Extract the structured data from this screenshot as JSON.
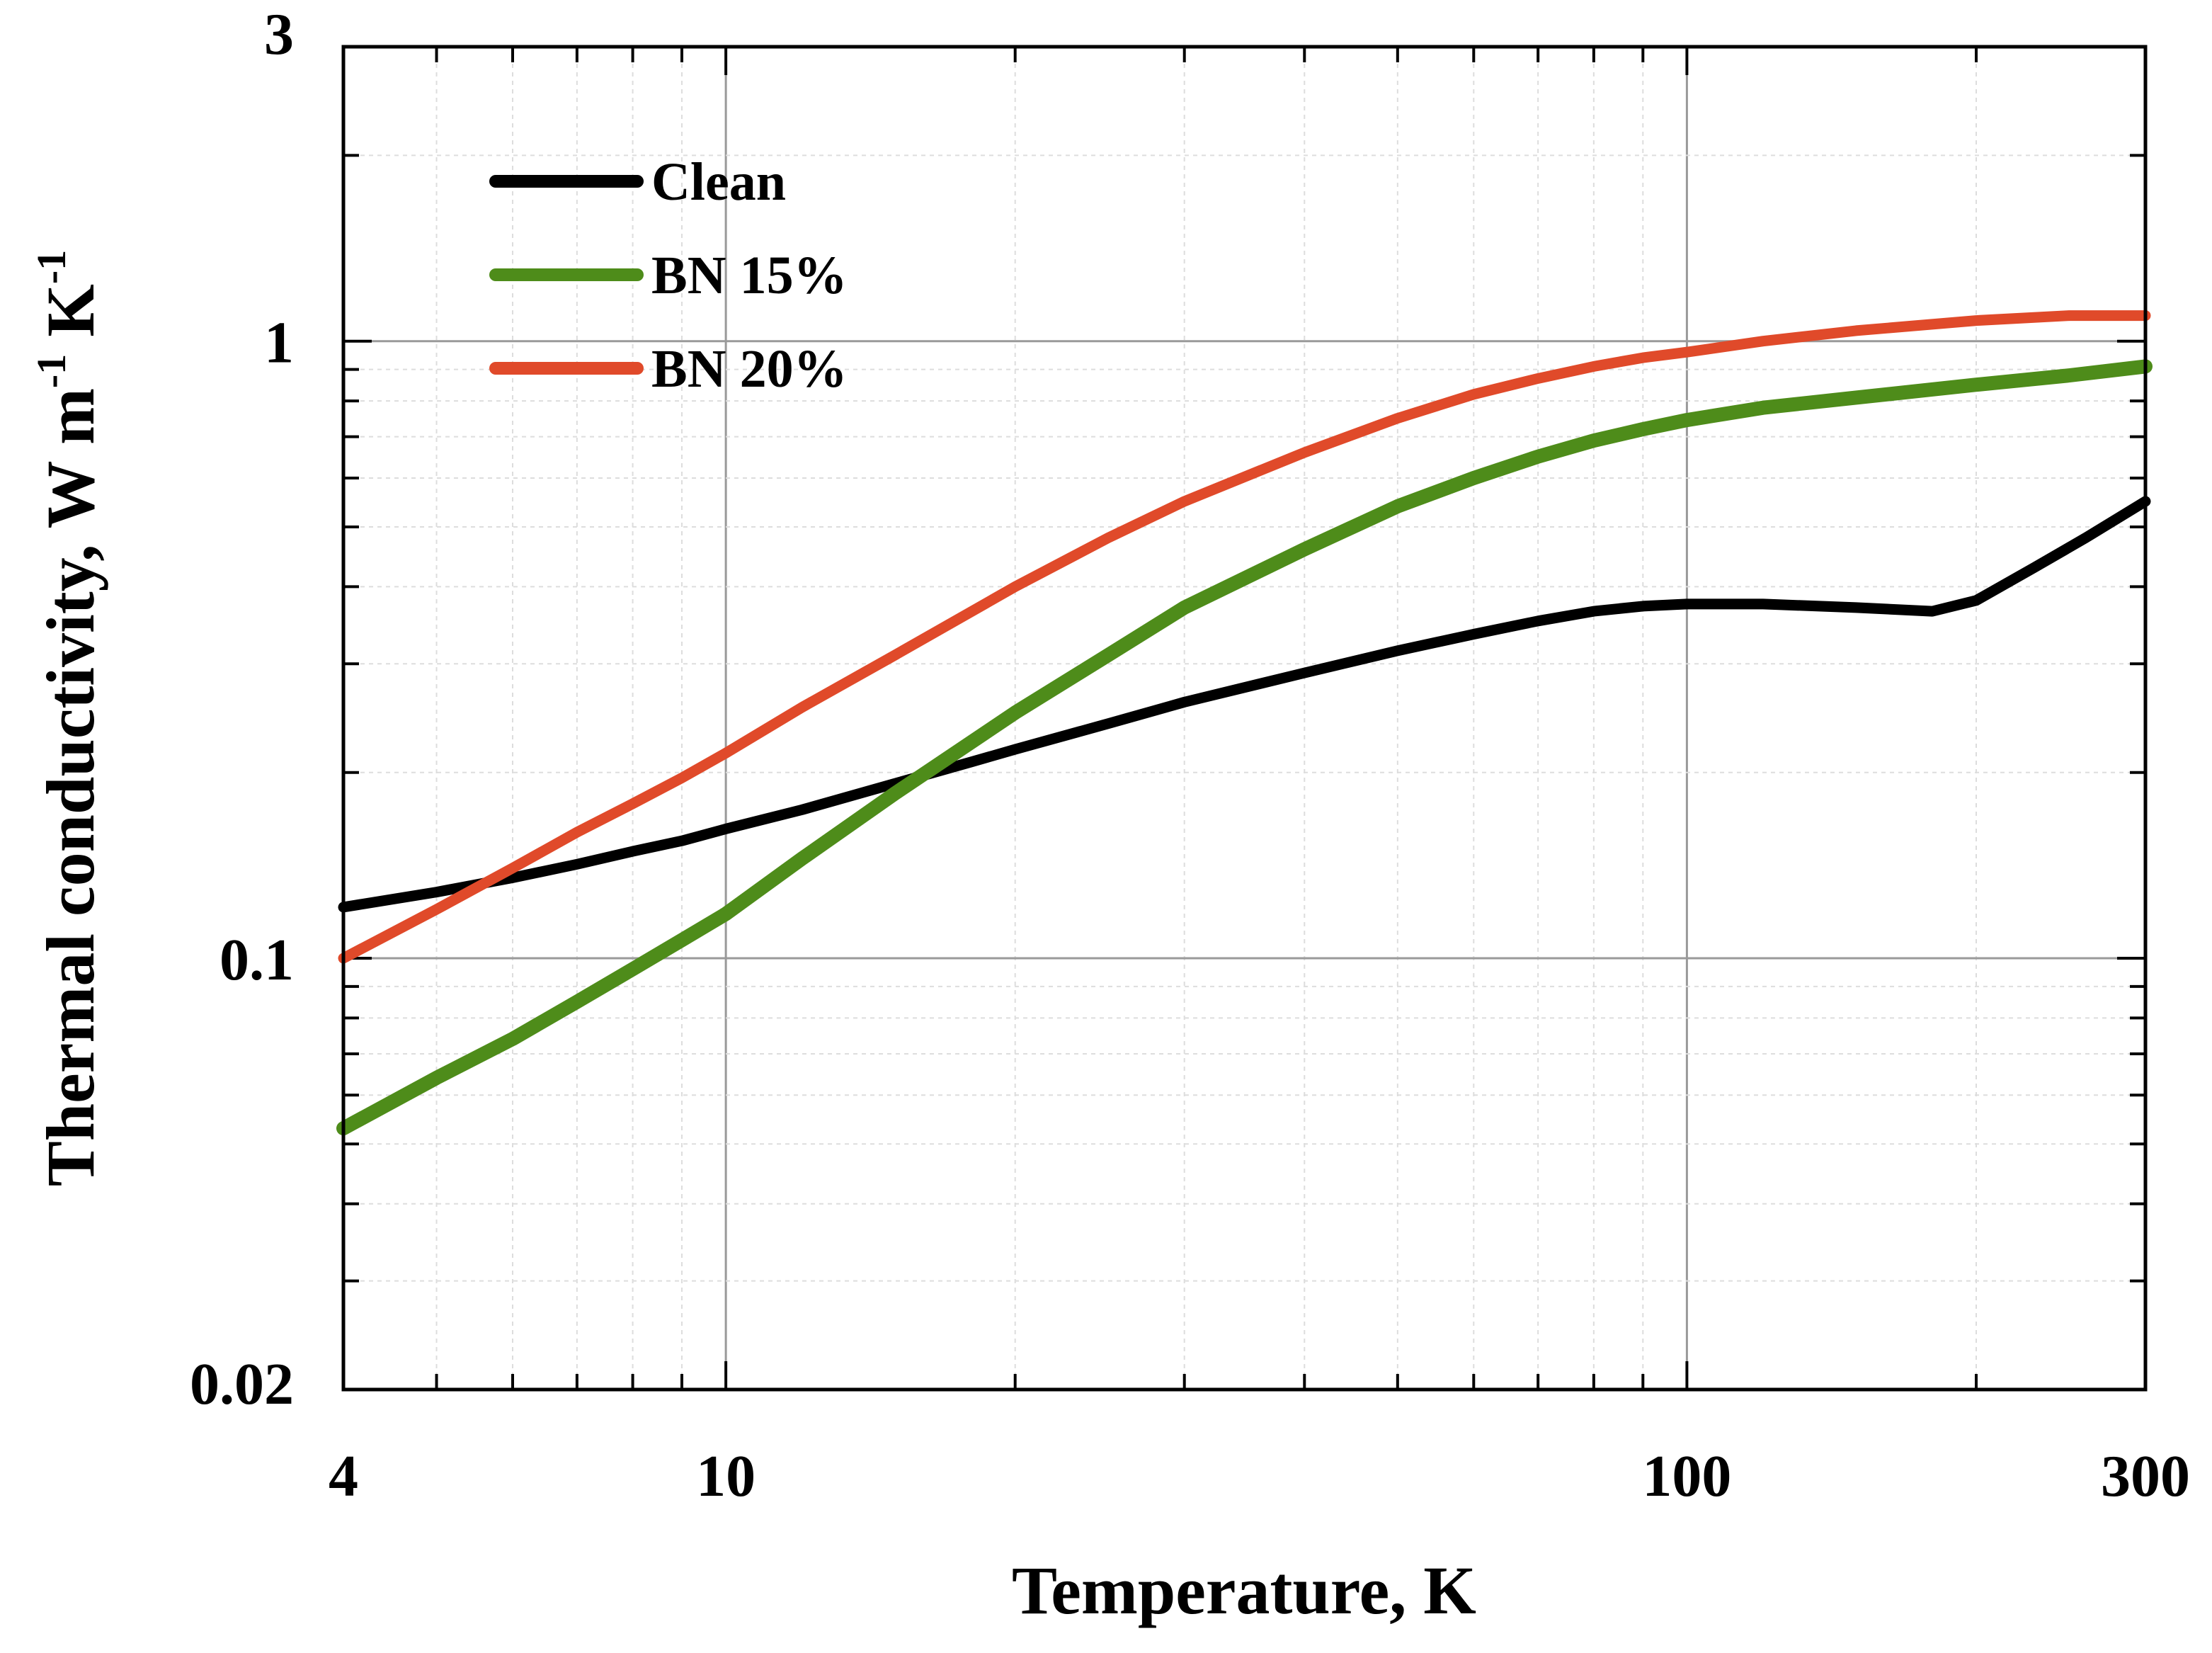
{
  "chart_data": {
    "type": "line",
    "xscale": "log",
    "yscale": "log",
    "xlim": [
      4,
      300
    ],
    "ylim": [
      0.02,
      3
    ],
    "xlabel": "Temperature, K",
    "ylabel": {
      "main": "Thermal conductivity, W m",
      "exp1": "-1",
      "mid": " K",
      "exp2": "-1"
    },
    "xticks": [
      {
        "value": 4,
        "label": "4"
      },
      {
        "value": 10,
        "label": "10"
      },
      {
        "value": 100,
        "label": "100"
      },
      {
        "value": 300,
        "label": "300"
      }
    ],
    "yticks": [
      {
        "value": 0.02,
        "label": "0.02"
      },
      {
        "value": 0.1,
        "label": "0.1"
      },
      {
        "value": 1,
        "label": "1"
      },
      {
        "value": 3,
        "label": "3"
      }
    ],
    "grid": true,
    "legend_position": "top-left",
    "series": [
      {
        "name": "Clean",
        "color": "#000000",
        "x": [
          4,
          5,
          6,
          7,
          8,
          9,
          10,
          12,
          15,
          18,
          20,
          25,
          30,
          40,
          50,
          60,
          70,
          80,
          90,
          100,
          120,
          150,
          180,
          200,
          230,
          260,
          300
        ],
        "y": [
          0.121,
          0.128,
          0.135,
          0.142,
          0.149,
          0.155,
          0.162,
          0.174,
          0.192,
          0.208,
          0.218,
          0.24,
          0.26,
          0.29,
          0.315,
          0.335,
          0.352,
          0.365,
          0.372,
          0.375,
          0.375,
          0.37,
          0.365,
          0.38,
          0.43,
          0.48,
          0.55
        ]
      },
      {
        "name": "BN 15%",
        "color": "#4e8c1a",
        "x": [
          4,
          5,
          6,
          7,
          8,
          9,
          10,
          12,
          15,
          20,
          25,
          30,
          40,
          50,
          60,
          70,
          80,
          90,
          100,
          120,
          150,
          200,
          250,
          300
        ],
        "y": [
          0.053,
          0.064,
          0.074,
          0.085,
          0.096,
          0.107,
          0.118,
          0.145,
          0.185,
          0.25,
          0.31,
          0.37,
          0.46,
          0.54,
          0.6,
          0.65,
          0.69,
          0.72,
          0.745,
          0.78,
          0.81,
          0.85,
          0.88,
          0.91
        ]
      },
      {
        "name": "BN 20%",
        "color": "#e04a2a",
        "x": [
          4,
          5,
          6,
          7,
          8,
          9,
          10,
          12,
          15,
          20,
          25,
          30,
          40,
          50,
          60,
          70,
          80,
          90,
          100,
          120,
          150,
          200,
          250,
          300
        ],
        "y": [
          0.1,
          0.12,
          0.14,
          0.16,
          0.178,
          0.196,
          0.215,
          0.255,
          0.31,
          0.4,
          0.48,
          0.55,
          0.66,
          0.75,
          0.82,
          0.87,
          0.91,
          0.94,
          0.96,
          1.0,
          1.04,
          1.08,
          1.1,
          1.1
        ]
      }
    ]
  }
}
